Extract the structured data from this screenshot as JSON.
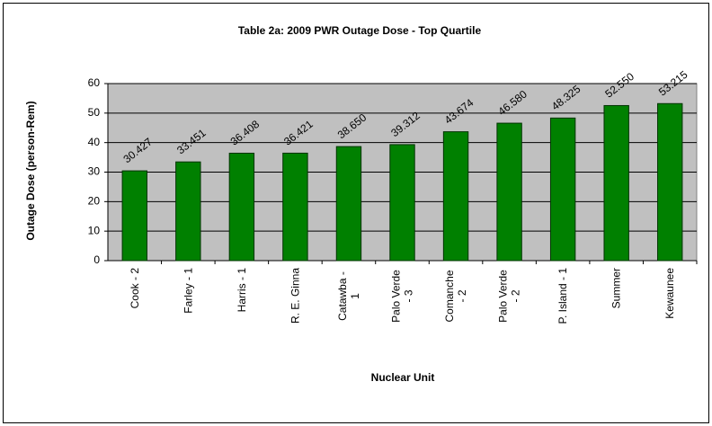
{
  "chart_data": {
    "type": "bar",
    "title": "Table 2a: 2009 PWR Outage Dose - Top Quartile",
    "x_label": "Nuclear Unit",
    "y_label": "Outage Dose (person-Rem)",
    "categories": [
      "Cook - 2",
      "Farley - 1",
      "Harris - 1",
      "R. E. Ginna",
      "Catawba - 1",
      "Palo Verde - 3",
      "Comanche - 2",
      "Palo Verde - 2",
      "P. Island - 1",
      "Summer",
      "Kewaunee"
    ],
    "values": [
      30.427,
      33.451,
      36.408,
      36.421,
      38.65,
      39.312,
      43.674,
      46.58,
      48.325,
      52.55,
      53.215
    ],
    "value_labels": [
      "30.427",
      "33.451",
      "36.408",
      "36.421",
      "38.650",
      "39.312",
      "43.674",
      "46.580",
      "48.325",
      "52.550",
      "53.215"
    ],
    "color": "#008000",
    "plot_background": "#c0c0c0",
    "ylim": [
      0,
      60
    ],
    "yticks": [
      0,
      10,
      20,
      30,
      40,
      50,
      60
    ],
    "grid": true
  }
}
